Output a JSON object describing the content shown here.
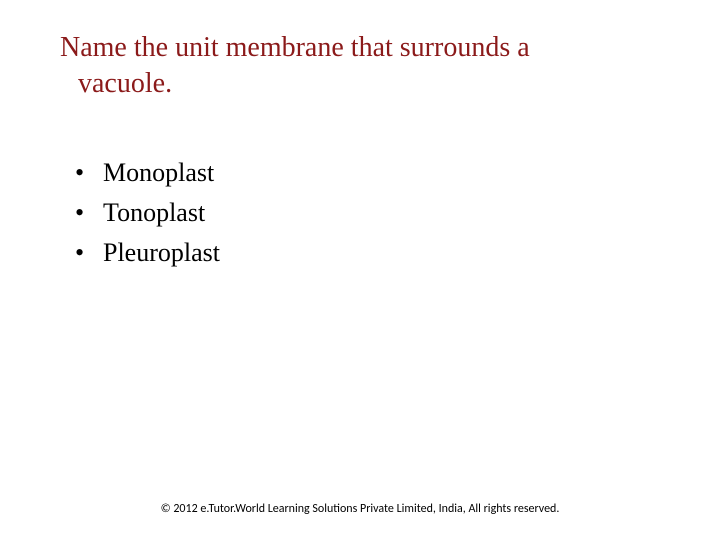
{
  "question": {
    "line1": "Name the unit membrane that surrounds a",
    "line2": "vacuole.",
    "color": "#8b1a1a",
    "fontsize": 28
  },
  "options": [
    "Monoplast",
    "Tonoplast",
    "Pleuroplast"
  ],
  "option_style": {
    "color": "#000000",
    "fontsize": 26,
    "bullet": "•"
  },
  "footer": {
    "text": "© 2012 e.Tutor.World Learning Solutions Private Limited, India, All rights reserved.",
    "fontsize": 12,
    "color": "#000000"
  },
  "background_color": "#ffffff"
}
